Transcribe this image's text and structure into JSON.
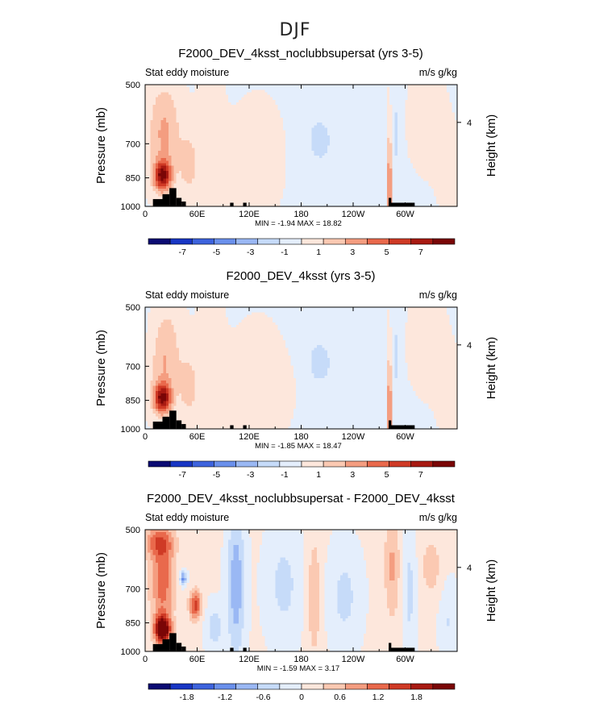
{
  "figure": {
    "title": "DJF"
  },
  "palette": {
    "colors": [
      "#0b0b73",
      "#1836c4",
      "#3d63dd",
      "#6a90ec",
      "#9ab8f4",
      "#c6dbf9",
      "#e4eefc",
      "#fde7dc",
      "#fbc9b2",
      "#f49d80",
      "#e9694c",
      "#cf3a25",
      "#a81a12",
      "#7a0606"
    ],
    "land": "#000000"
  },
  "chart_data": [
    {
      "type": "heatmap",
      "title": "F2000_DEV_4ksst_noclubbsupersat (yrs 3-5)",
      "left_label": "Stat eddy moisture",
      "right_label": "m/s g/kg",
      "ylabel": "Pressure (mb)",
      "ylabel_right": "Height (km)",
      "x_ticks": [
        "0",
        "60E",
        "120E",
        "180",
        "120W",
        "60W"
      ],
      "x_tick_values": [
        0,
        60,
        120,
        180,
        240,
        300
      ],
      "xlim": [
        0,
        360
      ],
      "y_ticks": [
        "500",
        "700",
        "850",
        "1000"
      ],
      "y_tick_values": [
        500,
        700,
        850,
        1000
      ],
      "ylim": [
        1000,
        500
      ],
      "right_ticks": [
        "4"
      ],
      "min": -1.94,
      "max": 18.82,
      "min_max_label": "MIN =   -1.94   MAX =   18.82",
      "colorbar": {
        "range": [
          -9,
          9
        ],
        "ticks": [
          "-7",
          "-5",
          "-3",
          "-1",
          "1",
          "3",
          "5",
          "7"
        ]
      }
    },
    {
      "type": "heatmap",
      "title": "F2000_DEV_4ksst (yrs 3-5)",
      "left_label": "Stat eddy moisture",
      "right_label": "m/s g/kg",
      "ylabel": "Pressure (mb)",
      "ylabel_right": "Height (km)",
      "x_ticks": [
        "0",
        "60E",
        "120E",
        "180",
        "120W",
        "60W"
      ],
      "x_tick_values": [
        0,
        60,
        120,
        180,
        240,
        300
      ],
      "xlim": [
        0,
        360
      ],
      "y_ticks": [
        "500",
        "700",
        "850",
        "1000"
      ],
      "y_tick_values": [
        500,
        700,
        850,
        1000
      ],
      "ylim": [
        1000,
        500
      ],
      "right_ticks": [
        "4"
      ],
      "min": -1.85,
      "max": 18.47,
      "min_max_label": "MIN =   -1.85   MAX =   18.47",
      "colorbar": {
        "range": [
          -9,
          9
        ],
        "ticks": [
          "-7",
          "-5",
          "-3",
          "-1",
          "1",
          "3",
          "5",
          "7"
        ]
      }
    },
    {
      "type": "heatmap",
      "title": "F2000_DEV_4ksst_noclubbsupersat - F2000_DEV_4ksst",
      "left_label": "Stat eddy moisture",
      "right_label": "m/s g/kg",
      "ylabel": "Pressure (mb)",
      "ylabel_right": "Height (km)",
      "x_ticks": [
        "0",
        "60E",
        "120E",
        "180",
        "120W",
        "60W"
      ],
      "x_tick_values": [
        0,
        60,
        120,
        180,
        240,
        300
      ],
      "xlim": [
        0,
        360
      ],
      "y_ticks": [
        "500",
        "700",
        "850",
        "1000"
      ],
      "y_tick_values": [
        500,
        700,
        850,
        1000
      ],
      "ylim": [
        1000,
        500
      ],
      "right_ticks": [
        "4"
      ],
      "min": -1.59,
      "max": 3.17,
      "min_max_label": "MIN =   -1.59   MAX =    3.17",
      "colorbar": {
        "range": [
          -2.4,
          2.4
        ],
        "ticks": [
          "-1.8",
          "-1.2",
          "-0.6",
          "0",
          "0.6",
          "1.2",
          "1.8"
        ]
      }
    }
  ]
}
